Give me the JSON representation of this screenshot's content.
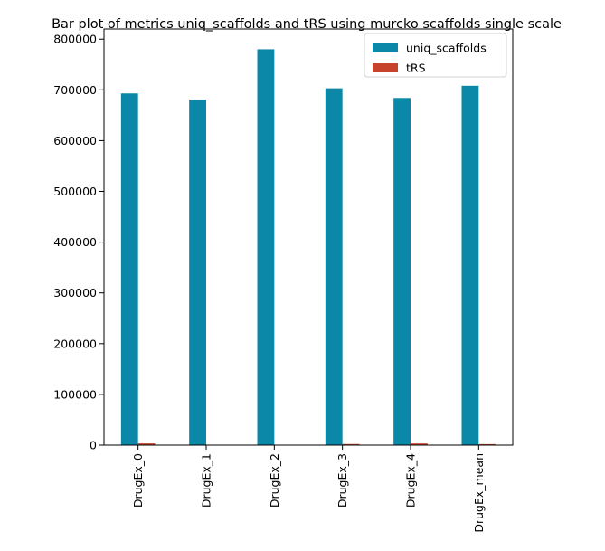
{
  "chart_data": {
    "type": "bar",
    "title": "Bar plot of metrics uniq_scaffolds and tRS using murcko scaffolds single scale",
    "xlabel": "",
    "ylabel": "",
    "categories": [
      "DrugEx_0",
      "DrugEx_1",
      "DrugEx_2",
      "DrugEx_3",
      "DrugEx_4",
      "DrugEx_mean"
    ],
    "series": [
      {
        "name": "uniq_scaffolds",
        "color": "#0b87a7",
        "values": [
          693000,
          681000,
          780000,
          703000,
          684000,
          708000
        ]
      },
      {
        "name": "tRS",
        "color": "#c8432b",
        "values": [
          3400,
          500,
          500,
          2200,
          3300,
          2000
        ]
      }
    ],
    "ylim": [
      0,
      820000
    ],
    "yticks": [
      0,
      100000,
      200000,
      300000,
      400000,
      500000,
      600000,
      700000,
      800000
    ],
    "ytick_labels": [
      "0",
      "100000",
      "200000",
      "300000",
      "400000",
      "500000",
      "600000",
      "700000",
      "800000"
    ],
    "grid": false,
    "legend_position": "upper right"
  }
}
